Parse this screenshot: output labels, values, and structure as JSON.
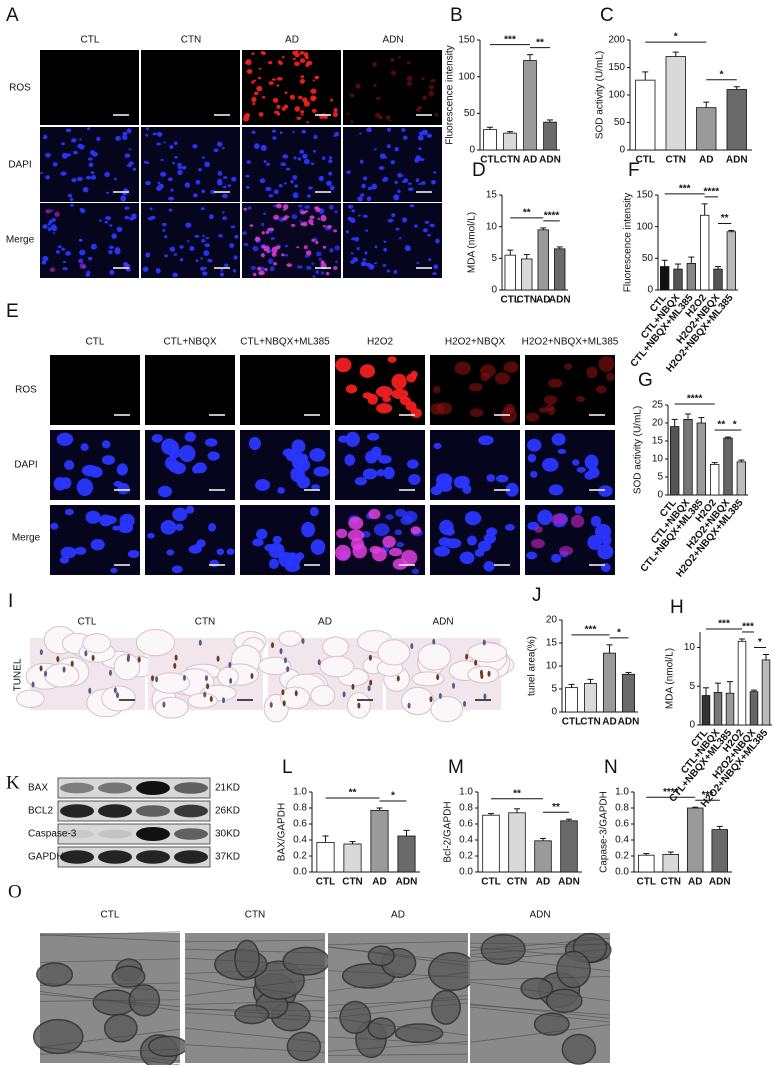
{
  "figure_a": {
    "letter": "A",
    "columns": [
      "CTL",
      "CTN",
      "AD",
      "ADN"
    ],
    "rows": [
      "ROS",
      "DAPI",
      "Merge"
    ]
  },
  "figure_e": {
    "letter": "E",
    "columns": [
      "CTL",
      "CTL+NBQX",
      "CTL+NBQX+ML385",
      "H2O2",
      "H2O2+NBQX",
      "H2O2+NBQX+ML385"
    ],
    "rows": [
      "ROS",
      "DAPI",
      "Merge"
    ]
  },
  "figure_i": {
    "letter": "I",
    "columns": [
      "CTL",
      "CTN",
      "AD",
      "ADN"
    ],
    "row": "TUNEL"
  },
  "figure_k": {
    "letter": "K",
    "bands": [
      {
        "name": "BAX",
        "size": "21KD"
      },
      {
        "name": "BCL2",
        "size": "26KD"
      },
      {
        "name": "Caspase-3",
        "size": "30KD"
      },
      {
        "name": "GAPDH",
        "size": "37KD"
      }
    ]
  },
  "figure_o": {
    "letter": "O",
    "columns": [
      "CTL",
      "CTN",
      "AD",
      "ADN"
    ]
  },
  "chart_data": [
    {
      "type": "bar",
      "letter": "B",
      "y_label": "Fluorescence intensity",
      "categories": [
        "CTL",
        "CTN",
        "AD",
        "ADN"
      ],
      "values": [
        28,
        23,
        122,
        38
      ],
      "errors": [
        3,
        2,
        8,
        3
      ],
      "colors": [
        "#ffffff",
        "#d9d9d9",
        "#9a9a9a",
        "#6a6a6a"
      ],
      "ylim": [
        0,
        150
      ],
      "yticks": [
        0,
        50,
        100,
        150
      ],
      "significance": [
        {
          "pair": [
            "CTL",
            "AD"
          ],
          "label": "***"
        },
        {
          "pair": [
            "AD",
            "ADN"
          ],
          "label": "**"
        }
      ]
    },
    {
      "type": "bar",
      "letter": "C",
      "y_label": "SOD activity (U/mL)",
      "categories": [
        "CTL",
        "CTN",
        "AD",
        "ADN"
      ],
      "values": [
        127,
        170,
        77,
        110
      ],
      "errors": [
        15,
        8,
        10,
        5
      ],
      "colors": [
        "#ffffff",
        "#d9d9d9",
        "#9a9a9a",
        "#6a6a6a"
      ],
      "ylim": [
        0,
        200
      ],
      "yticks": [
        0,
        50,
        100,
        150,
        200
      ],
      "significance": [
        {
          "pair": [
            "CTL",
            "AD"
          ],
          "label": "*"
        },
        {
          "pair": [
            "AD",
            "ADN"
          ],
          "label": "*"
        }
      ]
    },
    {
      "type": "bar",
      "letter": "D",
      "y_label": "MDA (nmol/L)",
      "categories": [
        "CTL",
        "CTN",
        "AD",
        "ADN"
      ],
      "values": [
        5.5,
        4.9,
        9.5,
        6.5
      ],
      "errors": [
        0.8,
        0.7,
        0.3,
        0.3
      ],
      "colors": [
        "#ffffff",
        "#d9d9d9",
        "#9a9a9a",
        "#6a6a6a"
      ],
      "ylim": [
        0,
        15
      ],
      "yticks": [
        0,
        5,
        10,
        15
      ],
      "significance": [
        {
          "pair": [
            "CTL",
            "AD"
          ],
          "label": "**"
        },
        {
          "pair": [
            "AD",
            "ADN"
          ],
          "label": "****"
        }
      ]
    },
    {
      "type": "bar",
      "letter": "F",
      "y_label": "Fluorescence intensity",
      "categories": [
        "CTL",
        "CTL+NBQX",
        "CTL+NBQX+ML385",
        "H2O2",
        "H2O2+NBQX",
        "H2O2+NBQX+ML385"
      ],
      "values": [
        37,
        33,
        42,
        118,
        33,
        92
      ],
      "errors": [
        10,
        8,
        10,
        18,
        4,
        2
      ],
      "colors": [
        "#111111",
        "#555555",
        "#888888",
        "#ffffff",
        "#555555",
        "#bbbbbb"
      ],
      "ylim": [
        0,
        150
      ],
      "yticks": [
        0,
        50,
        100,
        150
      ],
      "significance": [
        {
          "pair": [
            "CTL",
            "H2O2"
          ],
          "label": "***"
        },
        {
          "pair": [
            "H2O2",
            "H2O2+NBQX"
          ],
          "label": "****"
        },
        {
          "pair": [
            "H2O2+NBQX",
            "H2O2+NBQX+ML385"
          ],
          "label": "**"
        }
      ]
    },
    {
      "type": "bar",
      "letter": "G",
      "y_label": "SOD activity (U/mL)",
      "categories": [
        "CTL",
        "CTL+NBQX",
        "CTL+NBQX+ML385",
        "H2O2",
        "H2O2+NBQX",
        "H2O2+NBQX+ML385"
      ],
      "values": [
        19,
        21,
        20,
        8.5,
        15.8,
        9.2
      ],
      "errors": [
        2,
        1.5,
        1.5,
        0.5,
        0.3,
        0.5
      ],
      "colors": [
        "#555555",
        "#777777",
        "#999999",
        "#ffffff",
        "#666666",
        "#bbbbbb"
      ],
      "ylim": [
        0,
        25
      ],
      "yticks": [
        0,
        5,
        10,
        15,
        20,
        25
      ],
      "significance": [
        {
          "pair": [
            "CTL",
            "H2O2"
          ],
          "label": "****"
        },
        {
          "pair": [
            "H2O2",
            "H2O2+NBQX"
          ],
          "label": "**"
        },
        {
          "pair": [
            "H2O2+NBQX",
            "H2O2+NBQX+ML385"
          ],
          "label": "*"
        }
      ]
    },
    {
      "type": "bar",
      "letter": "J",
      "y_label": "tunel area(%)",
      "categories": [
        "CTL",
        "CTN",
        "AD",
        "ADN"
      ],
      "values": [
        5.3,
        6.2,
        12.8,
        8.2
      ],
      "errors": [
        0.7,
        0.9,
        1.8,
        0.4
      ],
      "colors": [
        "#ffffff",
        "#d9d9d9",
        "#9a9a9a",
        "#6a6a6a"
      ],
      "ylim": [
        0,
        20
      ],
      "yticks": [
        0,
        5,
        10,
        15,
        20
      ],
      "significance": [
        {
          "pair": [
            "CTL",
            "AD"
          ],
          "label": "***"
        },
        {
          "pair": [
            "AD",
            "ADN"
          ],
          "label": "*"
        }
      ]
    },
    {
      "type": "bar",
      "letter": "H",
      "y_label": "MDA (nmol/L)",
      "categories": [
        "CTL",
        "CTL+NBQX",
        "CTL+NBQX+ML385",
        "H2O2",
        "H2O2+NBQX",
        "H2O2+NBQX+ML385"
      ],
      "values": [
        3.8,
        4.2,
        4.1,
        10.8,
        4.3,
        8.4
      ],
      "errors": [
        1,
        1.2,
        1.5,
        0.3,
        0.2,
        0.7
      ],
      "colors": [
        "#333333",
        "#777777",
        "#999999",
        "#ffffff",
        "#666666",
        "#bbbbbb"
      ],
      "ylim": [
        0,
        12
      ],
      "yticks": [
        0,
        5,
        10
      ],
      "significance": [
        {
          "pair": [
            "CTL",
            "H2O2"
          ],
          "label": "***"
        },
        {
          "pair": [
            "H2O2",
            "H2O2+NBQX"
          ],
          "label": "***"
        },
        {
          "pair": [
            "H2O2+NBQX",
            "H2O2+NBQX+ML385"
          ],
          "label": "*"
        }
      ]
    },
    {
      "type": "bar",
      "letter": "L",
      "y_label": "BAX/GAPDH",
      "categories": [
        "CTL",
        "CTN",
        "AD",
        "ADN"
      ],
      "values": [
        0.37,
        0.35,
        0.77,
        0.45
      ],
      "errors": [
        0.08,
        0.03,
        0.03,
        0.07
      ],
      "colors": [
        "#ffffff",
        "#d9d9d9",
        "#9a9a9a",
        "#6a6a6a"
      ],
      "ylim": [
        0,
        1
      ],
      "yticks": [
        {
          "value": 0,
          "label": "0.0"
        },
        0.2,
        0.4,
        0.6,
        0.8,
        {
          "value": 1,
          "label": "1.0"
        }
      ],
      "significance": [
        {
          "pair": [
            "CTL",
            "AD"
          ],
          "label": "**"
        },
        {
          "pair": [
            "AD",
            "ADN"
          ],
          "label": "*"
        }
      ]
    },
    {
      "type": "bar",
      "letter": "M",
      "y_label": "Bcl-2/GAPDH",
      "categories": [
        "CTL",
        "CTN",
        "AD",
        "ADN"
      ],
      "values": [
        0.71,
        0.74,
        0.39,
        0.64
      ],
      "errors": [
        0.02,
        0.05,
        0.03,
        0.02
      ],
      "colors": [
        "#ffffff",
        "#d9d9d9",
        "#9a9a9a",
        "#6a6a6a"
      ],
      "ylim": [
        0,
        1
      ],
      "yticks": [
        {
          "value": 0,
          "label": "0.0"
        },
        0.2,
        0.4,
        0.6,
        0.8,
        {
          "value": 1,
          "label": "1.0"
        }
      ],
      "significance": [
        {
          "pair": [
            "CTL",
            "AD"
          ],
          "label": "**"
        },
        {
          "pair": [
            "AD",
            "ADN"
          ],
          "label": "**"
        }
      ]
    },
    {
      "type": "bar",
      "letter": "N",
      "y_label": "Capase-3/GAPDH",
      "categories": [
        "CTL",
        "CTN",
        "AD",
        "ADN"
      ],
      "values": [
        0.21,
        0.22,
        0.8,
        0.53
      ],
      "errors": [
        0.02,
        0.03,
        0.01,
        0.04
      ],
      "colors": [
        "#ffffff",
        "#d9d9d9",
        "#9a9a9a",
        "#6a6a6a"
      ],
      "ylim": [
        0,
        1
      ],
      "yticks": [
        {
          "value": 0,
          "label": "0.0"
        },
        0.2,
        0.4,
        0.6,
        0.8,
        {
          "value": 1,
          "label": "1.0"
        }
      ],
      "significance": [
        {
          "pair": [
            "CTL",
            "AD"
          ],
          "label": "****"
        },
        {
          "pair": [
            "AD",
            "ADN"
          ],
          "label": "***"
        }
      ]
    }
  ]
}
